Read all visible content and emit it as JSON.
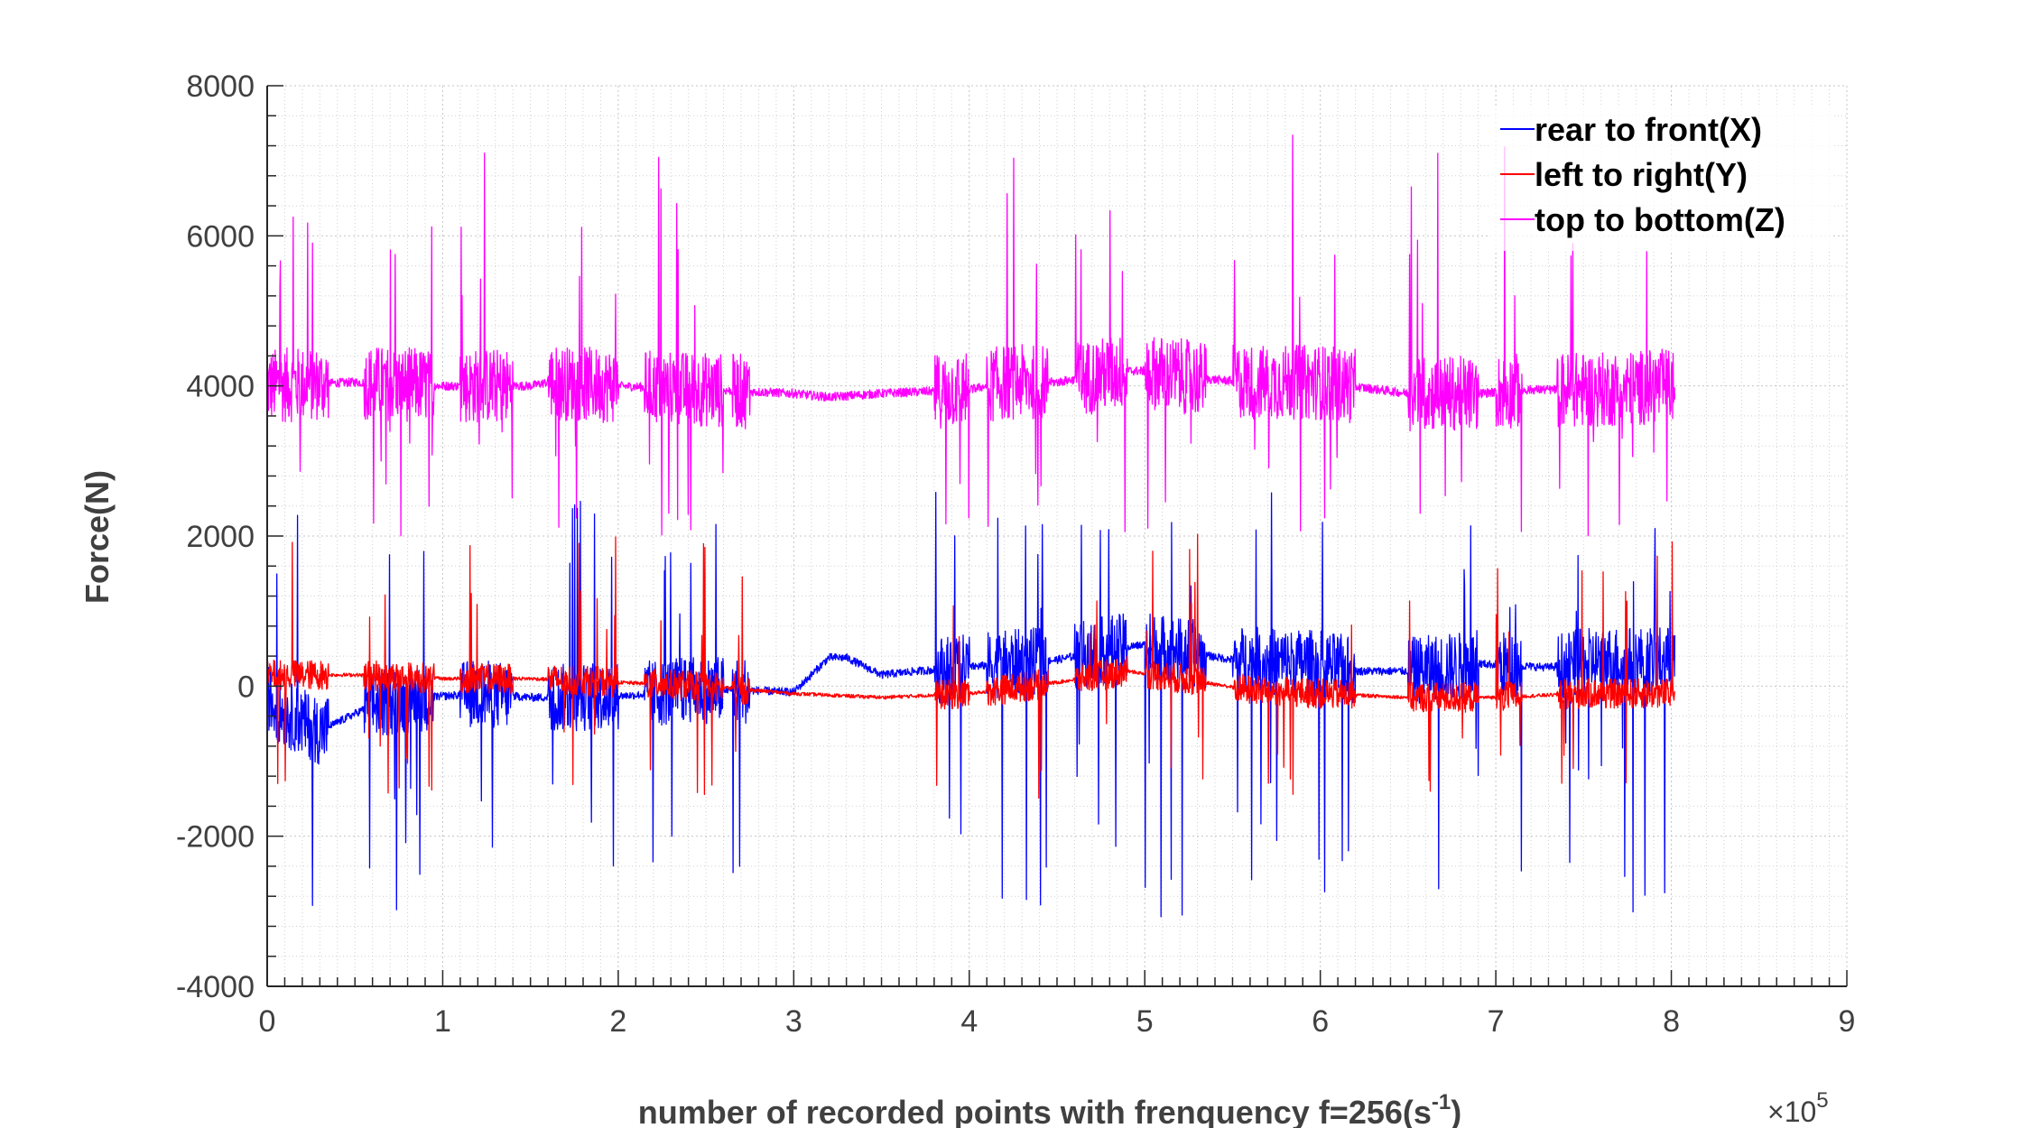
{
  "chart_data": {
    "type": "line",
    "title": "",
    "xlabel_main": "number of recorded points with frenquency f=256(s",
    "xlabel_sup": "-1",
    "xlabel_close": ")",
    "ylabel": "Force(N)",
    "x_exponent_prefix": "×10",
    "x_exponent_power": "5",
    "xlim": [
      0,
      9
    ],
    "ylim": [
      -4000,
      8000
    ],
    "x_ticks": [
      "0",
      "1",
      "2",
      "3",
      "4",
      "5",
      "6",
      "7",
      "8",
      "9"
    ],
    "y_ticks": [
      "8000",
      "6000",
      "4000",
      "2000",
      "0",
      "-2000",
      "-4000"
    ],
    "y_tick_values": [
      8000,
      6000,
      4000,
      2000,
      0,
      -2000,
      -4000
    ],
    "grid": true,
    "minor_grid": true,
    "legend_position": "top-right",
    "x_data_range": [
      0,
      8.02
    ],
    "series": [
      {
        "name": "rear to front(X)",
        "color": "#0000ff",
        "baseline": [
          [
            0,
            -100
          ],
          [
            0.05,
            -300
          ],
          [
            0.3,
            -600
          ],
          [
            0.6,
            -250
          ],
          [
            0.9,
            -150
          ],
          [
            1.2,
            -100
          ],
          [
            1.5,
            -150
          ],
          [
            1.8,
            -150
          ],
          [
            2.1,
            -120
          ],
          [
            2.4,
            -50
          ],
          [
            2.7,
            -50
          ],
          [
            3.0,
            -80
          ],
          [
            3.2,
            380
          ],
          [
            3.3,
            380
          ],
          [
            3.5,
            150
          ],
          [
            3.7,
            200
          ],
          [
            3.9,
            230
          ],
          [
            4.2,
            300
          ],
          [
            4.5,
            350
          ],
          [
            4.8,
            500
          ],
          [
            5.0,
            550
          ],
          [
            5.5,
            350
          ],
          [
            6.0,
            300
          ],
          [
            6.2,
            200
          ],
          [
            6.5,
            200
          ],
          [
            6.9,
            300
          ],
          [
            7.3,
            250
          ],
          [
            7.6,
            350
          ],
          [
            8.0,
            350
          ]
        ],
        "noise": 450,
        "spike_down_min": -3150,
        "spike_up_max": 2600
      },
      {
        "name": "left to right(Y)",
        "color": "#ff0000",
        "baseline": [
          [
            0,
            150
          ],
          [
            0.5,
            150
          ],
          [
            1.0,
            100
          ],
          [
            1.5,
            100
          ],
          [
            2.0,
            50
          ],
          [
            2.5,
            0
          ],
          [
            3.0,
            -100
          ],
          [
            3.5,
            -150
          ],
          [
            4.0,
            -100
          ],
          [
            4.5,
            50
          ],
          [
            4.9,
            200
          ],
          [
            5.2,
            100
          ],
          [
            5.6,
            -50
          ],
          [
            6.0,
            -100
          ],
          [
            6.5,
            -150
          ],
          [
            7.0,
            -150
          ],
          [
            7.5,
            -100
          ],
          [
            8.0,
            -100
          ]
        ],
        "noise": 200,
        "spike_up_max": 2050,
        "spike_down_min": -1500
      },
      {
        "name": "top to bottom(Z)",
        "color": "#ff00ff",
        "baseline": [
          [
            0,
            4000
          ],
          [
            0.5,
            4050
          ],
          [
            1.0,
            4000
          ],
          [
            1.5,
            4000
          ],
          [
            1.6,
            4050
          ],
          [
            2.0,
            4000
          ],
          [
            2.5,
            3950
          ],
          [
            3.0,
            3900
          ],
          [
            3.2,
            3850
          ],
          [
            3.5,
            3900
          ],
          [
            4.0,
            3950
          ],
          [
            4.2,
            4050
          ],
          [
            4.5,
            4050
          ],
          [
            4.9,
            4200
          ],
          [
            5.0,
            4200
          ],
          [
            5.3,
            4100
          ],
          [
            5.6,
            4050
          ],
          [
            6.0,
            4050
          ],
          [
            6.5,
            3900
          ],
          [
            6.9,
            3900
          ],
          [
            7.2,
            3950
          ],
          [
            7.6,
            3950
          ],
          [
            8.0,
            4000
          ]
        ],
        "noise": 500,
        "spike_up_max": 7350,
        "spike_down_min": 2000
      }
    ]
  }
}
